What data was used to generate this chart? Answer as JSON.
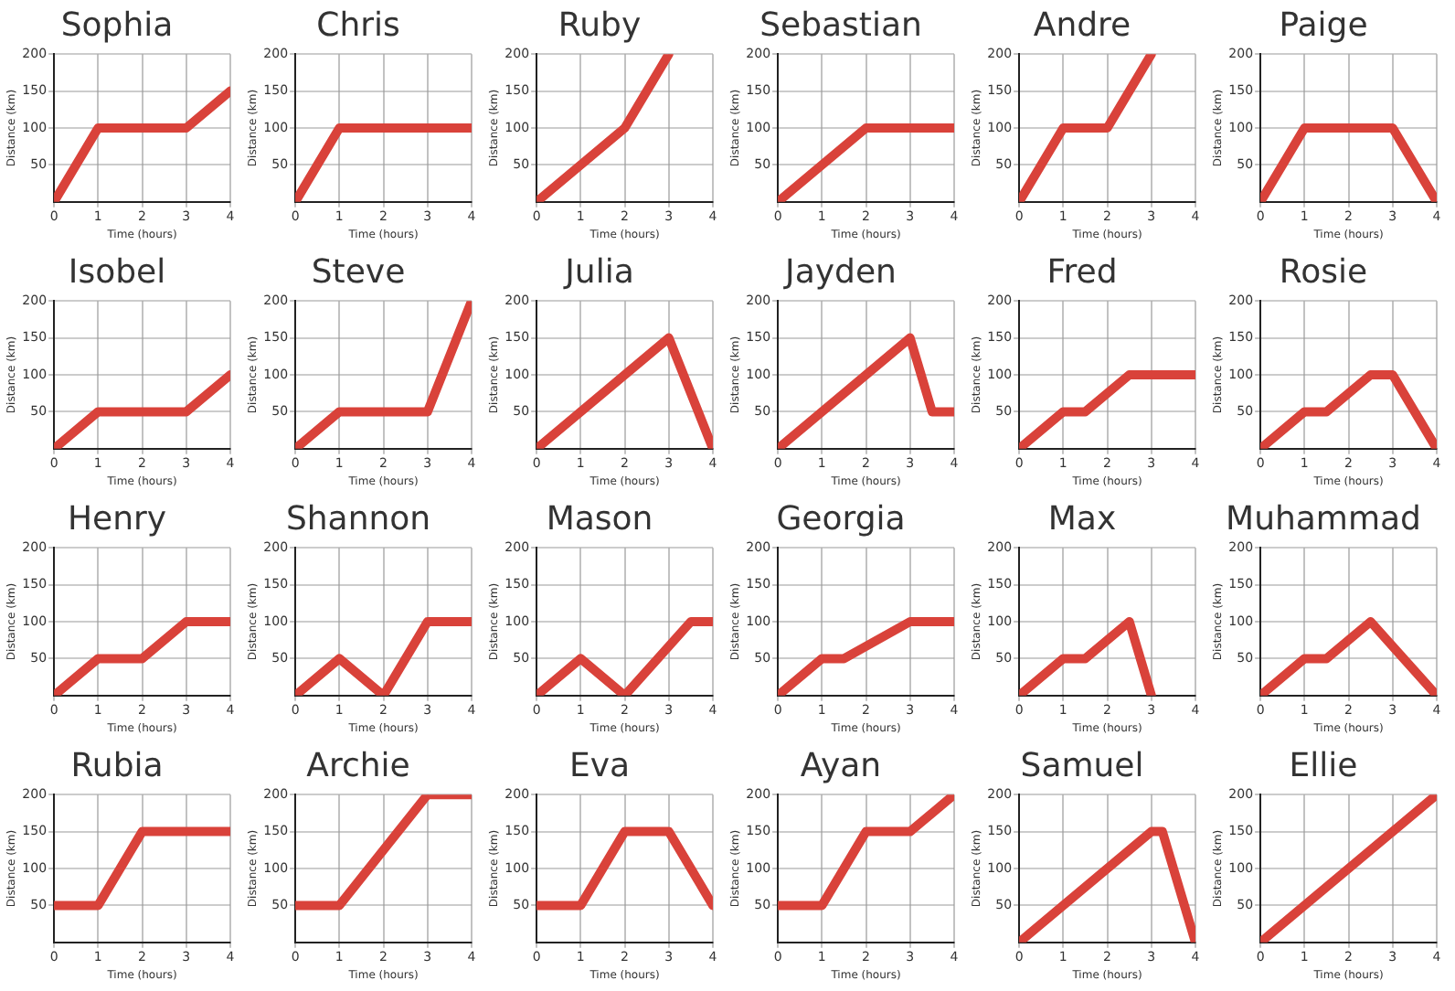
{
  "chart_data": [
    {
      "type": "line",
      "title": "Sophia",
      "xlabel": "Time (hours)",
      "ylabel": "Distance (km)",
      "x": [
        0,
        1,
        3,
        4
      ],
      "values": [
        0,
        100,
        100,
        150
      ],
      "color": "#d9423a",
      "xlim": [
        0,
        4
      ],
      "ylim": [
        0,
        200
      ],
      "xticks": [
        0,
        1,
        2,
        3,
        4
      ],
      "yticks": [
        50,
        100,
        150,
        200
      ],
      "grid": true
    },
    {
      "type": "line",
      "title": "Chris",
      "xlabel": "Time (hours)",
      "ylabel": "Distance (km)",
      "x": [
        0,
        1,
        4
      ],
      "values": [
        0,
        100,
        100
      ],
      "color": "#d9423a",
      "xlim": [
        0,
        4
      ],
      "ylim": [
        0,
        200
      ],
      "xticks": [
        0,
        1,
        2,
        3,
        4
      ],
      "yticks": [
        50,
        100,
        150,
        200
      ],
      "grid": true
    },
    {
      "type": "line",
      "title": "Ruby",
      "xlabel": "Time (hours)",
      "ylabel": "Distance (km)",
      "x": [
        0,
        2,
        3
      ],
      "values": [
        0,
        100,
        200
      ],
      "color": "#d9423a",
      "xlim": [
        0,
        4
      ],
      "ylim": [
        0,
        200
      ],
      "xticks": [
        0,
        1,
        2,
        3,
        4
      ],
      "yticks": [
        50,
        100,
        150,
        200
      ],
      "grid": true
    },
    {
      "type": "line",
      "title": "Sebastian",
      "xlabel": "Time (hours)",
      "ylabel": "Distance (km)",
      "x": [
        0,
        2,
        4
      ],
      "values": [
        0,
        100,
        100
      ],
      "color": "#d9423a",
      "xlim": [
        0,
        4
      ],
      "ylim": [
        0,
        200
      ],
      "xticks": [
        0,
        1,
        2,
        3,
        4
      ],
      "yticks": [
        50,
        100,
        150,
        200
      ],
      "grid": true
    },
    {
      "type": "line",
      "title": "Andre",
      "xlabel": "Time (hours)",
      "ylabel": "Distance (km)",
      "x": [
        0,
        1,
        2,
        3
      ],
      "values": [
        0,
        100,
        100,
        200
      ],
      "color": "#d9423a",
      "xlim": [
        0,
        4
      ],
      "ylim": [
        0,
        200
      ],
      "xticks": [
        0,
        1,
        2,
        3,
        4
      ],
      "yticks": [
        50,
        100,
        150,
        200
      ],
      "grid": true
    },
    {
      "type": "line",
      "title": "Paige",
      "xlabel": "Time (hours)",
      "ylabel": "Distance (km)",
      "x": [
        0,
        1,
        3,
        4
      ],
      "values": [
        0,
        100,
        100,
        0
      ],
      "color": "#d9423a",
      "xlim": [
        0,
        4
      ],
      "ylim": [
        0,
        200
      ],
      "xticks": [
        0,
        1,
        2,
        3,
        4
      ],
      "yticks": [
        50,
        100,
        150,
        200
      ],
      "grid": true
    },
    {
      "type": "line",
      "title": "Isobel",
      "xlabel": "Time (hours)",
      "ylabel": "Distance (km)",
      "x": [
        0,
        1,
        3,
        4
      ],
      "values": [
        0,
        50,
        50,
        100
      ],
      "color": "#d9423a",
      "xlim": [
        0,
        4
      ],
      "ylim": [
        0,
        200
      ],
      "xticks": [
        0,
        1,
        2,
        3,
        4
      ],
      "yticks": [
        50,
        100,
        150,
        200
      ],
      "grid": true
    },
    {
      "type": "line",
      "title": "Steve",
      "xlabel": "Time (hours)",
      "ylabel": "Distance (km)",
      "x": [
        0,
        1,
        3,
        4
      ],
      "values": [
        0,
        50,
        50,
        200
      ],
      "color": "#d9423a",
      "xlim": [
        0,
        4
      ],
      "ylim": [
        0,
        200
      ],
      "xticks": [
        0,
        1,
        2,
        3,
        4
      ],
      "yticks": [
        50,
        100,
        150,
        200
      ],
      "grid": true
    },
    {
      "type": "line",
      "title": "Julia",
      "xlabel": "Time (hours)",
      "ylabel": "Distance (km)",
      "x": [
        0,
        3,
        4
      ],
      "values": [
        0,
        150,
        0
      ],
      "color": "#d9423a",
      "xlim": [
        0,
        4
      ],
      "ylim": [
        0,
        200
      ],
      "xticks": [
        0,
        1,
        2,
        3,
        4
      ],
      "yticks": [
        50,
        100,
        150,
        200
      ],
      "grid": true
    },
    {
      "type": "line",
      "title": "Jayden",
      "xlabel": "Time (hours)",
      "ylabel": "Distance (km)",
      "x": [
        0,
        3,
        3.5,
        4
      ],
      "values": [
        0,
        150,
        50,
        50
      ],
      "color": "#d9423a",
      "xlim": [
        0,
        4
      ],
      "ylim": [
        0,
        200
      ],
      "xticks": [
        0,
        1,
        2,
        3,
        4
      ],
      "yticks": [
        50,
        100,
        150,
        200
      ],
      "grid": true
    },
    {
      "type": "line",
      "title": "Fred",
      "xlabel": "Time (hours)",
      "ylabel": "Distance (km)",
      "x": [
        0,
        1,
        1.5,
        2.5,
        4
      ],
      "values": [
        0,
        50,
        50,
        100,
        100
      ],
      "color": "#d9423a",
      "xlim": [
        0,
        4
      ],
      "ylim": [
        0,
        200
      ],
      "xticks": [
        0,
        1,
        2,
        3,
        4
      ],
      "yticks": [
        50,
        100,
        150,
        200
      ],
      "grid": true
    },
    {
      "type": "line",
      "title": "Rosie",
      "xlabel": "Time (hours)",
      "ylabel": "Distance (km)",
      "x": [
        0,
        1,
        1.5,
        2.5,
        3,
        4
      ],
      "values": [
        0,
        50,
        50,
        100,
        100,
        0
      ],
      "color": "#d9423a",
      "xlim": [
        0,
        4
      ],
      "ylim": [
        0,
        200
      ],
      "xticks": [
        0,
        1,
        2,
        3,
        4
      ],
      "yticks": [
        50,
        100,
        150,
        200
      ],
      "grid": true
    },
    {
      "type": "line",
      "title": "Henry",
      "xlabel": "Time (hours)",
      "ylabel": "Distance (km)",
      "x": [
        0,
        1,
        2,
        3,
        4
      ],
      "values": [
        0,
        50,
        50,
        100,
        100
      ],
      "color": "#d9423a",
      "xlim": [
        0,
        4
      ],
      "ylim": [
        0,
        200
      ],
      "xticks": [
        0,
        1,
        2,
        3,
        4
      ],
      "yticks": [
        50,
        100,
        150,
        200
      ],
      "grid": true
    },
    {
      "type": "line",
      "title": "Shannon",
      "xlabel": "Time (hours)",
      "ylabel": "Distance (km)",
      "x": [
        0,
        1,
        2,
        3,
        4
      ],
      "values": [
        0,
        50,
        0,
        100,
        100
      ],
      "color": "#d9423a",
      "xlim": [
        0,
        4
      ],
      "ylim": [
        0,
        200
      ],
      "xticks": [
        0,
        1,
        2,
        3,
        4
      ],
      "yticks": [
        50,
        100,
        150,
        200
      ],
      "grid": true
    },
    {
      "type": "line",
      "title": "Mason",
      "xlabel": "Time (hours)",
      "ylabel": "Distance (km)",
      "x": [
        0,
        1,
        2,
        3.5,
        4
      ],
      "values": [
        0,
        50,
        0,
        100,
        100
      ],
      "color": "#d9423a",
      "xlim": [
        0,
        4
      ],
      "ylim": [
        0,
        200
      ],
      "xticks": [
        0,
        1,
        2,
        3,
        4
      ],
      "yticks": [
        50,
        100,
        150,
        200
      ],
      "grid": true
    },
    {
      "type": "line",
      "title": "Georgia",
      "xlabel": "Time (hours)",
      "ylabel": "Distance (km)",
      "x": [
        0,
        1,
        1.5,
        3,
        4
      ],
      "values": [
        0,
        50,
        50,
        100,
        100
      ],
      "color": "#d9423a",
      "xlim": [
        0,
        4
      ],
      "ylim": [
        0,
        200
      ],
      "xticks": [
        0,
        1,
        2,
        3,
        4
      ],
      "yticks": [
        50,
        100,
        150,
        200
      ],
      "grid": true
    },
    {
      "type": "line",
      "title": "Max",
      "xlabel": "Time (hours)",
      "ylabel": "Distance (km)",
      "x": [
        0,
        1,
        1.5,
        2.5,
        3
      ],
      "values": [
        0,
        50,
        50,
        100,
        0
      ],
      "color": "#d9423a",
      "xlim": [
        0,
        4
      ],
      "ylim": [
        0,
        200
      ],
      "xticks": [
        0,
        1,
        2,
        3,
        4
      ],
      "yticks": [
        50,
        100,
        150,
        200
      ],
      "grid": true
    },
    {
      "type": "line",
      "title": "Muhammad",
      "xlabel": "Time (hours)",
      "ylabel": "Distance (km)",
      "x": [
        0,
        1,
        1.5,
        2.5,
        4
      ],
      "values": [
        0,
        50,
        50,
        100,
        0
      ],
      "color": "#d9423a",
      "xlim": [
        0,
        4
      ],
      "ylim": [
        0,
        200
      ],
      "xticks": [
        0,
        1,
        2,
        3,
        4
      ],
      "yticks": [
        50,
        100,
        150,
        200
      ],
      "grid": true
    },
    {
      "type": "line",
      "title": "Rubia",
      "xlabel": "Time (hours)",
      "ylabel": "Distance (km)",
      "x": [
        0,
        1,
        2,
        4
      ],
      "values": [
        50,
        50,
        150,
        150
      ],
      "color": "#d9423a",
      "xlim": [
        0,
        4
      ],
      "ylim": [
        0,
        200
      ],
      "xticks": [
        0,
        1,
        2,
        3,
        4
      ],
      "yticks": [
        50,
        100,
        150,
        200
      ],
      "grid": true
    },
    {
      "type": "line",
      "title": "Archie",
      "xlabel": "Time (hours)",
      "ylabel": "Distance (km)",
      "x": [
        0,
        1,
        3,
        4
      ],
      "values": [
        50,
        50,
        200,
        200
      ],
      "color": "#d9423a",
      "xlim": [
        0,
        4
      ],
      "ylim": [
        0,
        200
      ],
      "xticks": [
        0,
        1,
        2,
        3,
        4
      ],
      "yticks": [
        50,
        100,
        150,
        200
      ],
      "grid": true
    },
    {
      "type": "line",
      "title": "Eva",
      "xlabel": "Time (hours)",
      "ylabel": "Distance (km)",
      "x": [
        0,
        1,
        2,
        3,
        4
      ],
      "values": [
        50,
        50,
        150,
        150,
        50
      ],
      "color": "#d9423a",
      "xlim": [
        0,
        4
      ],
      "ylim": [
        0,
        200
      ],
      "xticks": [
        0,
        1,
        2,
        3,
        4
      ],
      "yticks": [
        50,
        100,
        150,
        200
      ],
      "grid": true
    },
    {
      "type": "line",
      "title": "Ayan",
      "xlabel": "Time (hours)",
      "ylabel": "Distance (km)",
      "x": [
        0,
        1,
        2,
        3,
        4
      ],
      "values": [
        50,
        50,
        150,
        150,
        200
      ],
      "color": "#d9423a",
      "xlim": [
        0,
        4
      ],
      "ylim": [
        0,
        200
      ],
      "xticks": [
        0,
        1,
        2,
        3,
        4
      ],
      "yticks": [
        50,
        100,
        150,
        200
      ],
      "grid": true
    },
    {
      "type": "line",
      "title": "Samuel",
      "xlabel": "Time (hours)",
      "ylabel": "Distance (km)",
      "x": [
        0,
        3,
        3.25,
        4
      ],
      "values": [
        0,
        150,
        150,
        0
      ],
      "color": "#d9423a",
      "xlim": [
        0,
        4
      ],
      "ylim": [
        0,
        200
      ],
      "xticks": [
        0,
        1,
        2,
        3,
        4
      ],
      "yticks": [
        50,
        100,
        150,
        200
      ],
      "grid": true
    },
    {
      "type": "line",
      "title": "Ellie",
      "xlabel": "Time (hours)",
      "ylabel": "Distance (km)",
      "x": [
        0,
        4
      ],
      "values": [
        0,
        200
      ],
      "color": "#d9423a",
      "xlim": [
        0,
        4
      ],
      "ylim": [
        0,
        200
      ],
      "xticks": [
        0,
        1,
        2,
        3,
        4
      ],
      "yticks": [
        50,
        100,
        150,
        200
      ],
      "grid": true
    }
  ]
}
